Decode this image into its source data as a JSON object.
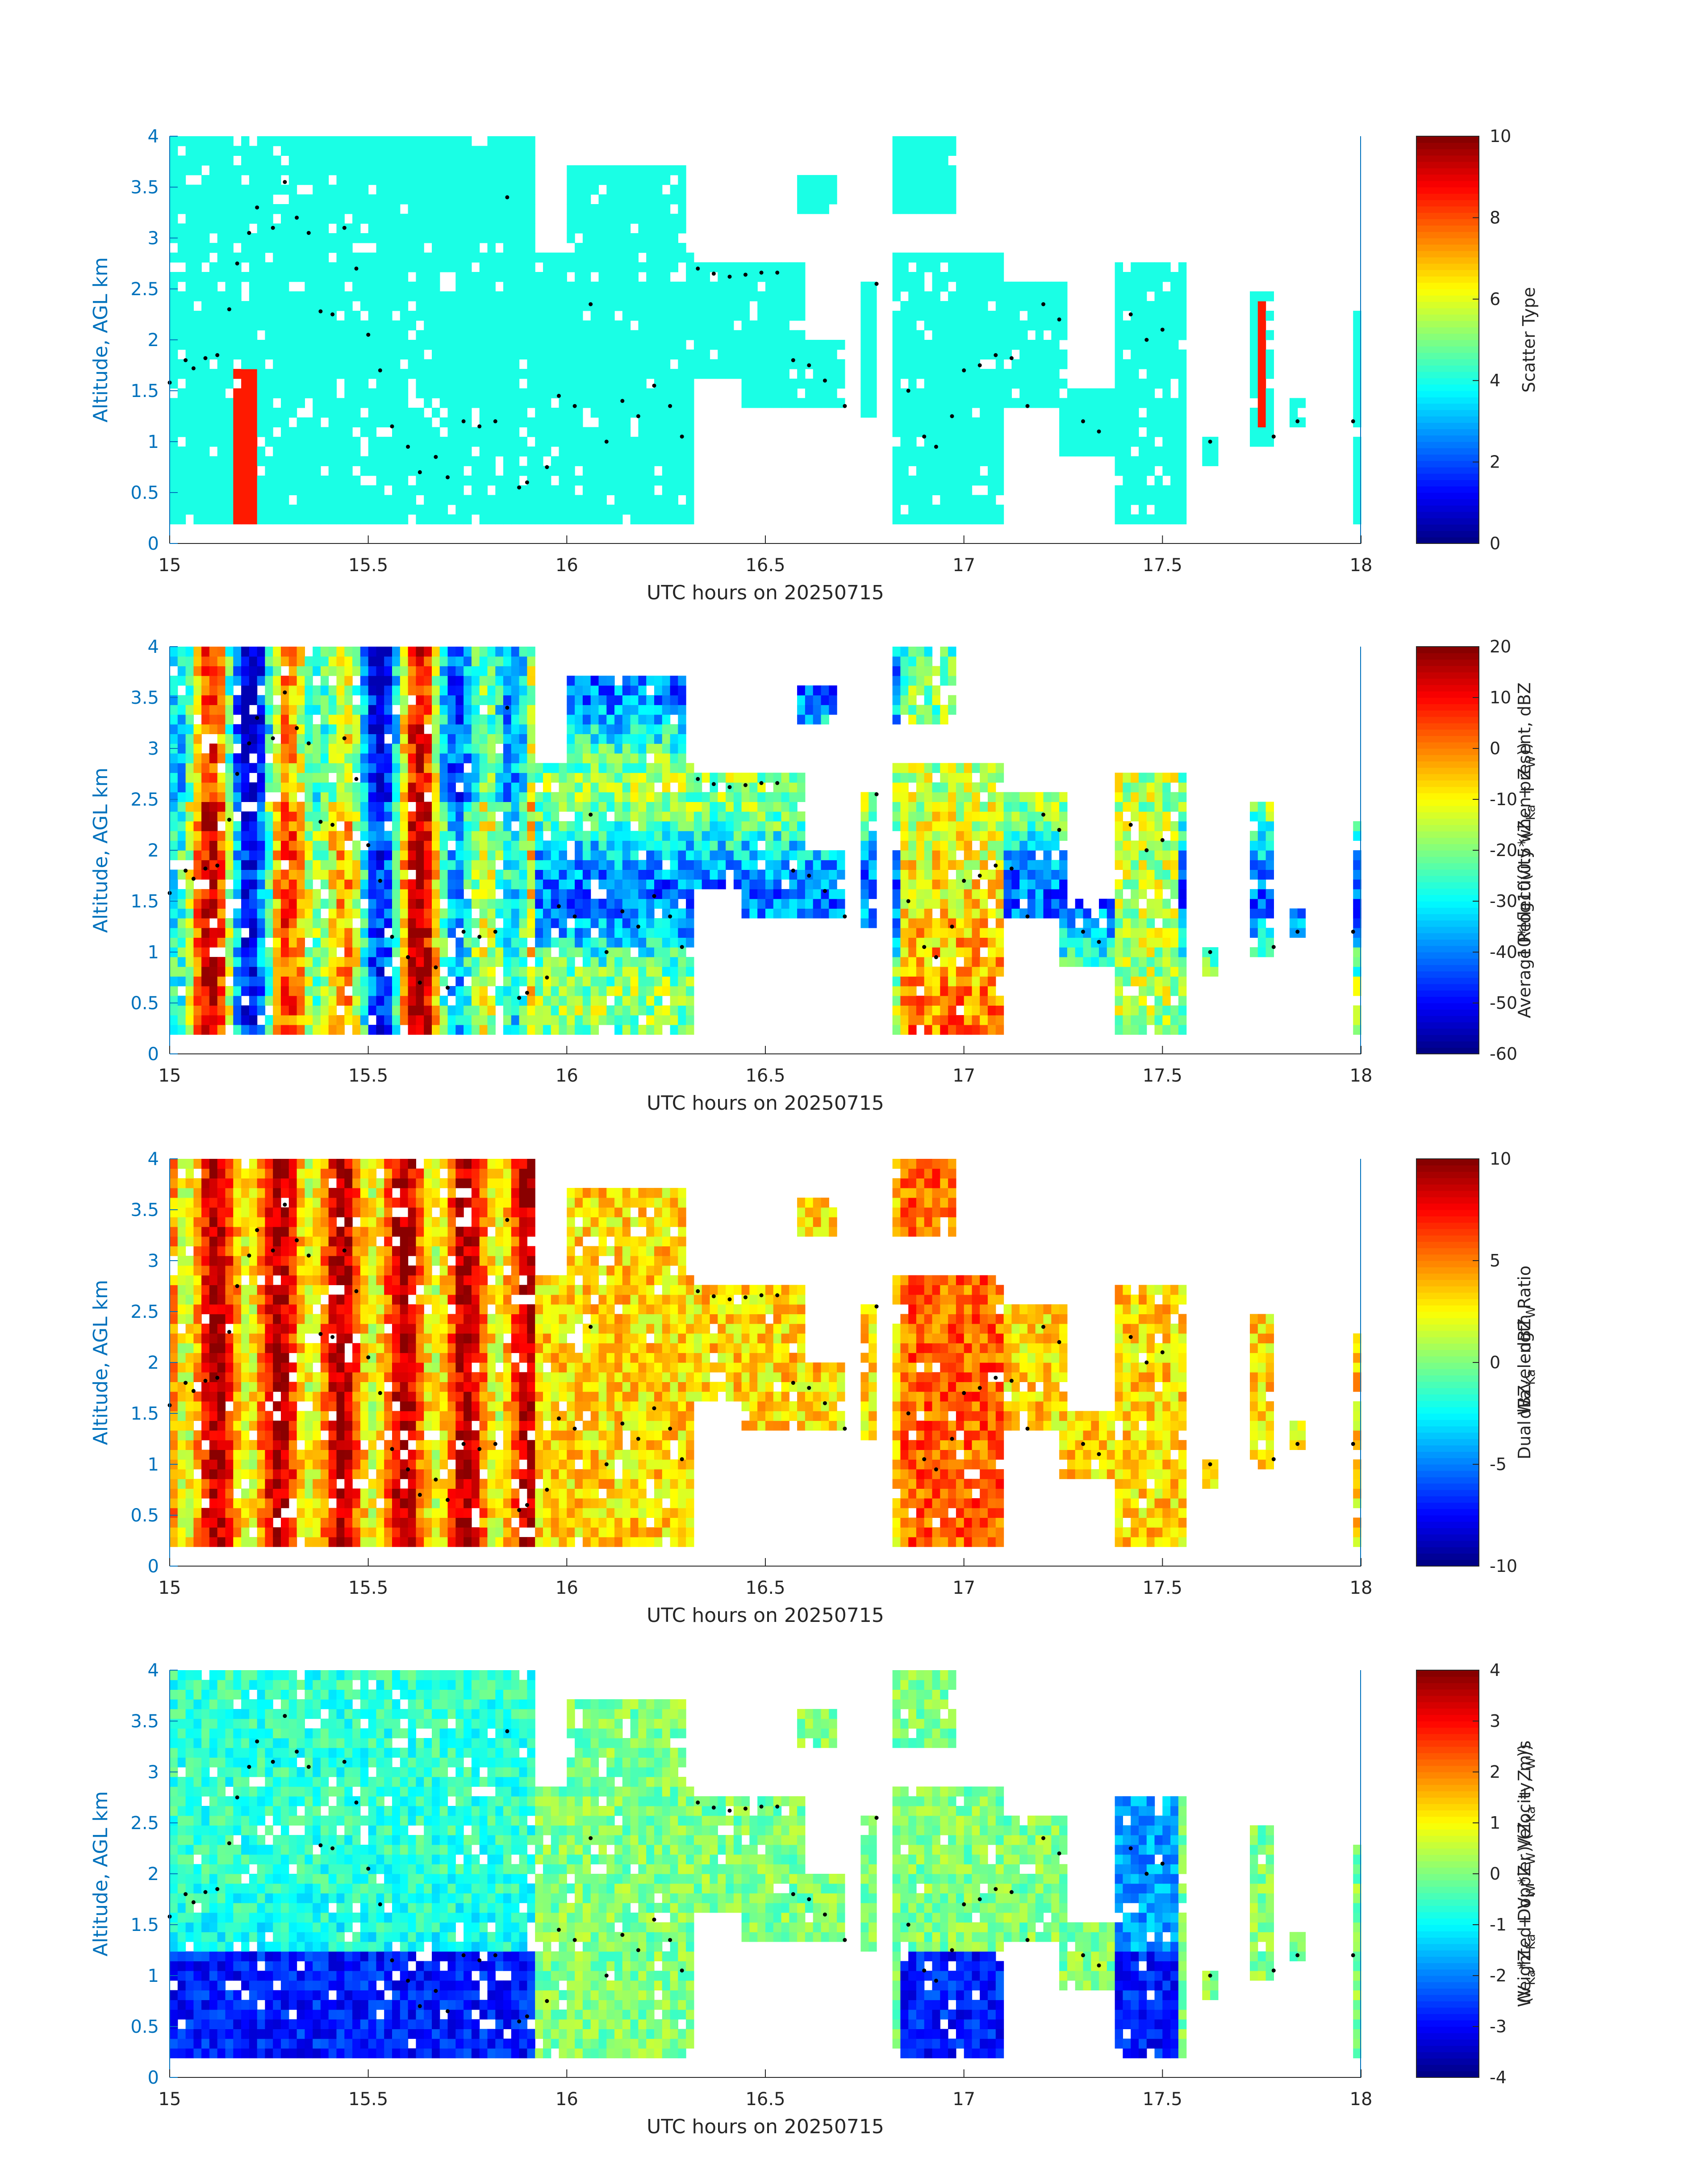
{
  "figure": {
    "title": "",
    "xlabel": "UTC hours on 20250715",
    "ylabel": "Altitude, AGL km"
  },
  "chart_data": [
    {
      "type": "heatmap",
      "panel": "scatter-type",
      "xlabel": "UTC hours on 20250715",
      "ylabel": "Altitude, AGL km",
      "xlim": [
        15,
        18
      ],
      "ylim": [
        0,
        4
      ],
      "x_ticks": [
        "15",
        "15.5",
        "16",
        "16.5",
        "17",
        "17.5",
        "18"
      ],
      "y_ticks": [
        "0",
        "0.5",
        "1",
        "1.5",
        "2",
        "2.5",
        "3",
        "3.5",
        "4"
      ],
      "colorbar_label": "Scatter Type",
      "colorbar_lines": [
        "Scatter Type"
      ],
      "clim": [
        0,
        10
      ],
      "colorbar_ticks": [
        "0",
        "2",
        "4",
        "6",
        "8",
        "10"
      ],
      "colormap": "jet",
      "typical_value": 4,
      "secondary_value": 8.5
    },
    {
      "type": "heatmap",
      "panel": "reflectivity",
      "xlabel": "UTC hours on 20250715",
      "ylabel": "Altitude, AGL km",
      "xlim": [
        15,
        18
      ],
      "ylim": [
        0,
        4
      ],
      "x_ticks": [
        "15",
        "15.5",
        "16",
        "16.5",
        "17",
        "17.5",
        "18"
      ],
      "y_ticks": [
        "0",
        "0.5",
        "1",
        "1.5",
        "2",
        "2.5",
        "3",
        "3.5",
        "4"
      ],
      "colorbar_lines": [
        "Average Reflectivity when present, dBZ",
        "10*log10(0.5*(Z",
        "Ka",
        " + Z",
        "W",
        "))"
      ],
      "clim": [
        -60,
        20
      ],
      "colorbar_ticks": [
        "-60",
        "-50",
        "-40",
        "-30",
        "-20",
        "-10",
        "0",
        "10",
        "20"
      ],
      "colormap": "jet"
    },
    {
      "type": "heatmap",
      "panel": "dual-wavelength-ratio",
      "xlabel": "UTC hours on 20250715",
      "ylabel": "Altitude, AGL km",
      "xlim": [
        15,
        18
      ],
      "ylim": [
        0,
        4
      ],
      "x_ticks": [
        "15",
        "15.5",
        "16",
        "16.5",
        "17",
        "17.5",
        "18"
      ],
      "y_ticks": [
        "0",
        "0.5",
        "1",
        "1.5",
        "2",
        "2.5",
        "3",
        "3.5",
        "4"
      ],
      "colorbar_lines": [
        "Dual Wavelength Ratio",
        "dBZ",
        "Ka",
        " - dBZ",
        "W"
      ],
      "clim": [
        -10,
        10
      ],
      "colorbar_ticks": [
        "-10",
        "-5",
        "0",
        "5",
        "10"
      ],
      "colormap": "jet"
    },
    {
      "type": "heatmap",
      "panel": "doppler-velocity",
      "xlabel": "UTC hours on 20250715",
      "ylabel": "Altitude, AGL km",
      "xlim": [
        15,
        18
      ],
      "ylim": [
        0,
        4
      ],
      "x_ticks": [
        "15",
        "15.5",
        "16",
        "16.5",
        "17",
        "17.5",
        "18"
      ],
      "y_ticks": [
        "0",
        "0.5",
        "1",
        "1.5",
        "2",
        "2.5",
        "3",
        "3.5",
        "4"
      ],
      "colorbar_lines": [
        "Weighted Doppler Velocity, m/s",
        "(V",
        "Ka",
        "*Z",
        "Ka",
        " + V",
        "W",
        "*Z",
        "W",
        ")/(Z",
        "Ka",
        " + Z",
        "W",
        "))"
      ],
      "clim": [
        -4,
        4
      ],
      "colorbar_ticks": [
        "-4",
        "-3",
        "-2",
        "-1",
        "0",
        "1",
        "2",
        "3",
        "4"
      ],
      "colormap": "jet"
    }
  ],
  "cloud_regions": [
    {
      "x0": 15.0,
      "x1": 15.92,
      "y0": 0.2,
      "y1": 4.0
    },
    {
      "x0": 15.92,
      "x1": 16.32,
      "y0": 0.2,
      "y1": 2.9
    },
    {
      "x0": 16.0,
      "x1": 16.3,
      "y0": 2.4,
      "y1": 3.7
    },
    {
      "x0": 16.3,
      "x1": 16.6,
      "y0": 1.6,
      "y1": 2.8
    },
    {
      "x0": 16.45,
      "x1": 16.7,
      "y0": 1.3,
      "y1": 2.0
    },
    {
      "x0": 16.58,
      "x1": 16.68,
      "y0": 3.2,
      "y1": 3.6
    },
    {
      "x0": 16.75,
      "x1": 16.78,
      "y0": 1.2,
      "y1": 2.6
    },
    {
      "x0": 16.83,
      "x1": 17.1,
      "y0": 0.2,
      "y1": 2.9
    },
    {
      "x0": 16.83,
      "x1": 16.97,
      "y0": 3.2,
      "y1": 4.0
    },
    {
      "x0": 17.1,
      "x1": 17.25,
      "y0": 1.3,
      "y1": 2.6
    },
    {
      "x0": 17.25,
      "x1": 17.38,
      "y0": 0.9,
      "y1": 1.5
    },
    {
      "x0": 17.38,
      "x1": 17.55,
      "y0": 0.2,
      "y1": 2.8
    },
    {
      "x0": 17.6,
      "x1": 17.63,
      "y0": 0.75,
      "y1": 1.0
    },
    {
      "x0": 17.72,
      "x1": 17.77,
      "y0": 1.0,
      "y1": 2.5
    },
    {
      "x0": 17.82,
      "x1": 17.85,
      "y0": 1.1,
      "y1": 1.4
    },
    {
      "x0": 17.98,
      "x1": 18.0,
      "y0": 0.2,
      "y1": 2.3
    }
  ],
  "particle_markers": [
    [
      15.0,
      1.58
    ],
    [
      15.04,
      1.8
    ],
    [
      15.06,
      1.72
    ],
    [
      15.09,
      1.82
    ],
    [
      15.12,
      1.85
    ],
    [
      15.15,
      2.3
    ],
    [
      15.17,
      2.75
    ],
    [
      15.2,
      3.05
    ],
    [
      15.22,
      3.3
    ],
    [
      15.26,
      3.1
    ],
    [
      15.29,
      3.55
    ],
    [
      15.32,
      3.2
    ],
    [
      15.35,
      3.05
    ],
    [
      15.38,
      2.28
    ],
    [
      15.41,
      2.25
    ],
    [
      15.44,
      3.1
    ],
    [
      15.47,
      2.7
    ],
    [
      15.5,
      2.05
    ],
    [
      15.53,
      1.7
    ],
    [
      15.56,
      1.15
    ],
    [
      15.6,
      0.95
    ],
    [
      15.63,
      0.7
    ],
    [
      15.67,
      0.85
    ],
    [
      15.7,
      0.65
    ],
    [
      15.74,
      1.2
    ],
    [
      15.78,
      1.15
    ],
    [
      15.82,
      1.2
    ],
    [
      15.85,
      3.4
    ],
    [
      15.88,
      0.55
    ],
    [
      15.9,
      0.6
    ],
    [
      15.95,
      0.75
    ],
    [
      15.98,
      1.45
    ],
    [
      16.02,
      1.35
    ],
    [
      16.06,
      2.35
    ],
    [
      16.1,
      1.0
    ],
    [
      16.14,
      1.4
    ],
    [
      16.18,
      1.25
    ],
    [
      16.22,
      1.55
    ],
    [
      16.26,
      1.35
    ],
    [
      16.29,
      1.05
    ],
    [
      16.33,
      2.7
    ],
    [
      16.37,
      2.65
    ],
    [
      16.41,
      2.62
    ],
    [
      16.45,
      2.64
    ],
    [
      16.49,
      2.66
    ],
    [
      16.53,
      2.66
    ],
    [
      16.57,
      1.8
    ],
    [
      16.61,
      1.75
    ],
    [
      16.65,
      1.6
    ],
    [
      16.7,
      1.35
    ],
    [
      16.78,
      2.55
    ],
    [
      16.86,
      1.5
    ],
    [
      16.9,
      1.05
    ],
    [
      16.93,
      0.95
    ],
    [
      16.97,
      1.25
    ],
    [
      17.0,
      1.7
    ],
    [
      17.04,
      1.75
    ],
    [
      17.08,
      1.85
    ],
    [
      17.12,
      1.82
    ],
    [
      17.16,
      1.35
    ],
    [
      17.2,
      2.35
    ],
    [
      17.24,
      2.2
    ],
    [
      17.3,
      1.2
    ],
    [
      17.34,
      1.1
    ],
    [
      17.42,
      2.25
    ],
    [
      17.46,
      2.0
    ],
    [
      17.5,
      2.1
    ],
    [
      17.62,
      1.0
    ],
    [
      17.78,
      1.05
    ],
    [
      17.84,
      1.2
    ],
    [
      17.98,
      1.2
    ]
  ]
}
